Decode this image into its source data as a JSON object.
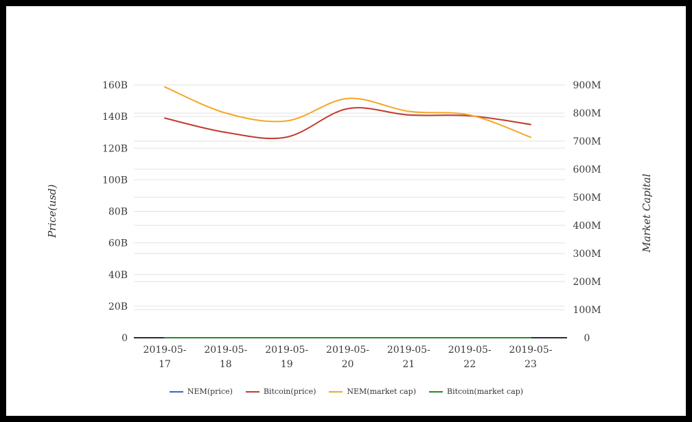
{
  "frame": {
    "border_color": "#000000",
    "background_color": "#ffffff"
  },
  "chart_data": {
    "type": "line",
    "title": "",
    "x": [
      "2019-05-17",
      "2019-05-18",
      "2019-05-19",
      "2019-05-20",
      "2019-05-21",
      "2019-05-22",
      "2019-05-23"
    ],
    "left_axis": {
      "title": "Price(usd)",
      "tick_labels": [
        "0",
        "20B",
        "40B",
        "60B",
        "80B",
        "100B",
        "120B",
        "140B",
        "160B"
      ],
      "min": 0,
      "max": 160,
      "unit": "B"
    },
    "right_axis": {
      "title": "Market Capital",
      "tick_labels": [
        "0",
        "100M",
        "200M",
        "300M",
        "400M",
        "500M",
        "600M",
        "700M",
        "800M",
        "900M"
      ],
      "min": 0,
      "max": 900,
      "unit": "M"
    },
    "series": [
      {
        "name": "NEM(price)",
        "color": "#3366cc",
        "axis": "left",
        "values": [
          0,
          0,
          0,
          0,
          0,
          0,
          0
        ]
      },
      {
        "name": "Bitcoin(price)",
        "color": "#c0392b",
        "axis": "left",
        "values": [
          139,
          130,
          127,
          145,
          141,
          140.5,
          135
        ]
      },
      {
        "name": "NEM(market cap)",
        "color": "#f5a623",
        "axis": "right",
        "values": [
          893,
          800,
          772,
          852,
          806,
          793,
          714
        ]
      },
      {
        "name": "Bitcoin(market cap)",
        "color": "#228b22",
        "axis": "right",
        "values": [
          0,
          0,
          0,
          0,
          0,
          0,
          0
        ]
      }
    ],
    "legend_position": "bottom",
    "grid": true,
    "grid_color": "#e2e2e2",
    "axis_line_color": "#2b2b2b"
  }
}
